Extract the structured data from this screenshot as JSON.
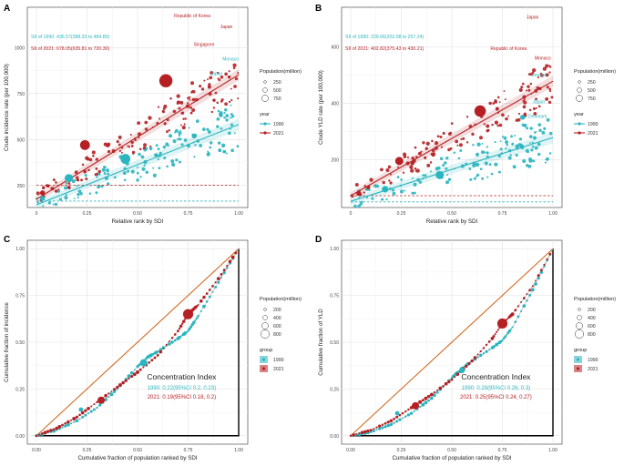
{
  "colors": {
    "y1990": "#2bb5bf",
    "y2021": "#b52024",
    "equality": "#d2691e",
    "lorenz_axis": "#000000",
    "curve_line": "#b0b0b0"
  },
  "chart_data": [
    {
      "id": "A",
      "type": "scatter",
      "panel_label": "A",
      "xlabel": "Relative rank by SDI",
      "ylabel": "Crude incidence rate (per 100,000)",
      "xlim": [
        0,
        1
      ],
      "ylim": [
        130,
        1220
      ],
      "xticks": [
        "0",
        "0.25",
        "0.50",
        "0.75",
        "1.00"
      ],
      "yticks": [
        "250",
        "500",
        "750",
        "1000"
      ],
      "annotations": [
        {
          "text": "SII of 1990: 436.57(388.33 to 484.80)",
          "series": "1990"
        },
        {
          "text": "SII of 2021: 678.05(635.81 to 720.30)",
          "series": "2021"
        }
      ],
      "country_labels": [
        {
          "text": "Republic of Korea",
          "x": 0.86,
          "y": 1165,
          "series": "2021"
        },
        {
          "text": "Japan",
          "x": 0.97,
          "y": 1105,
          "series": "2021"
        },
        {
          "text": "Singapore",
          "x": 0.88,
          "y": 1010,
          "series": "2021"
        },
        {
          "text": "Monaco",
          "x": 1.0,
          "y": 930,
          "series": "1990"
        },
        {
          "text": "Japan",
          "x": 0.92,
          "y": 850,
          "series": "1990"
        }
      ],
      "regression": [
        {
          "series": "1990",
          "x": [
            0,
            1
          ],
          "y": [
            145,
            582
          ]
        },
        {
          "series": "2021",
          "x": [
            0,
            1
          ],
          "y": [
            175,
            853
          ]
        }
      ],
      "baseline": [
        {
          "series": "1990",
          "y": 165
        },
        {
          "series": "2021",
          "y": 252
        }
      ],
      "highlight_points": [
        {
          "series": "1990",
          "x": 0.03,
          "y": 180,
          "size": 3
        },
        {
          "series": "1990",
          "x": 0.16,
          "y": 290,
          "size": 5
        },
        {
          "series": "1990",
          "x": 0.44,
          "y": 395,
          "size": 6
        },
        {
          "series": "1990",
          "x": 0.78,
          "y": 520,
          "size": 3
        },
        {
          "series": "2021",
          "x": 0.24,
          "y": 470,
          "size": 6
        },
        {
          "series": "2021",
          "x": 0.64,
          "y": 820,
          "size": 8
        },
        {
          "series": "2021",
          "x": 0.03,
          "y": 210,
          "size": 3
        }
      ],
      "legend": {
        "size_title": "Population(million)",
        "size_values": [
          "250",
          "500",
          "750"
        ],
        "color_title": "year",
        "color_values": [
          "1990",
          "2021"
        ]
      }
    },
    {
      "id": "B",
      "type": "scatter",
      "panel_label": "B",
      "xlabel": "Relative rank by SDI",
      "ylabel": "Crude YLD rate (per 100,000)",
      "xlim": [
        0,
        1
      ],
      "ylim": [
        30,
        740
      ],
      "xticks": [
        "0",
        "0.25",
        "0.50",
        "0.75",
        "1.00"
      ],
      "yticks": [
        "200",
        "400",
        "600"
      ],
      "annotations": [
        {
          "text": "SII of 1990: 229.66(202.08 to 257.24)",
          "series": "1990"
        },
        {
          "text": "SII of 2021: 402.82(375.43 to 430.21)",
          "series": "2021"
        }
      ],
      "country_labels": [
        {
          "text": "Japan",
          "x": 0.93,
          "y": 700,
          "series": "2021"
        },
        {
          "text": "Republic of Korea",
          "x": 0.87,
          "y": 588,
          "series": "2021"
        },
        {
          "text": "Monaco",
          "x": 0.99,
          "y": 555,
          "series": "2021"
        },
        {
          "text": "Monaco",
          "x": 0.97,
          "y": 495,
          "series": "1990"
        },
        {
          "text": "Japan",
          "x": 0.96,
          "y": 400,
          "series": "1990"
        },
        {
          "text": "Denmark",
          "x": 0.97,
          "y": 348,
          "series": "1990"
        }
      ],
      "regression": [
        {
          "series": "1990",
          "x": [
            0,
            1
          ],
          "y": [
            52,
            278
          ]
        },
        {
          "series": "2021",
          "x": [
            0,
            1
          ],
          "y": [
            72,
            478
          ]
        }
      ],
      "baseline": [
        {
          "series": "1990",
          "y": 50
        },
        {
          "series": "2021",
          "y": 72
        }
      ],
      "highlight_points": [
        {
          "series": "1990",
          "x": 0.17,
          "y": 95,
          "size": 4
        },
        {
          "series": "1990",
          "x": 0.44,
          "y": 145,
          "size": 5
        },
        {
          "series": "1990",
          "x": 0.85,
          "y": 350,
          "size": 3
        },
        {
          "series": "2021",
          "x": 0.24,
          "y": 195,
          "size": 5
        },
        {
          "series": "2021",
          "x": 0.64,
          "y": 372,
          "size": 7
        },
        {
          "series": "2021",
          "x": 0.04,
          "y": 80,
          "size": 3
        }
      ],
      "legend": {
        "size_title": "Population(million)",
        "size_values": [
          "250",
          "500",
          "750"
        ],
        "color_title": "year",
        "color_values": [
          "1990",
          "2021"
        ]
      }
    },
    {
      "id": "C",
      "type": "line",
      "panel_label": "C",
      "xlabel": "Cumulative fraction of population ranked by SDI",
      "ylabel": "Cumulative fraction of incidence",
      "xlim": [
        0,
        1
      ],
      "ylim": [
        0,
        1
      ],
      "xticks": [
        "0.00",
        "0.25",
        "0.50",
        "0.75",
        "1.00"
      ],
      "yticks": [
        "0.00",
        "0.25",
        "0.50",
        "0.75",
        "1.00"
      ],
      "concentration_title": "Concentration Index",
      "concentration_1990": "1990: 0.22(95%CI 0.2, 0.23)",
      "concentration_2021": "2021: 0.19(95%CI 0.18, 0.2)",
      "series": [
        {
          "name": "1990",
          "x": [
            0,
            0.1,
            0.2,
            0.3,
            0.4,
            0.5,
            0.55,
            0.6,
            0.7,
            0.75,
            0.8,
            0.9,
            1
          ],
          "y": [
            0,
            0.03,
            0.08,
            0.15,
            0.25,
            0.37,
            0.42,
            0.45,
            0.52,
            0.56,
            0.64,
            0.82,
            1
          ]
        },
        {
          "name": "2021",
          "x": [
            0,
            0.1,
            0.2,
            0.3,
            0.4,
            0.5,
            0.6,
            0.7,
            0.75,
            0.8,
            0.9,
            1
          ],
          "y": [
            0,
            0.04,
            0.1,
            0.18,
            0.26,
            0.34,
            0.43,
            0.56,
            0.65,
            0.7,
            0.84,
            1
          ]
        }
      ],
      "highlight_points": [
        {
          "series": "1990",
          "x": 0.22,
          "y": 0.14,
          "size": 3
        },
        {
          "series": "1990",
          "x": 0.53,
          "y": 0.39,
          "size": 5
        },
        {
          "series": "2021",
          "x": 0.32,
          "y": 0.19,
          "size": 5
        },
        {
          "series": "2021",
          "x": 0.75,
          "y": 0.65,
          "size": 7
        }
      ],
      "legend": {
        "size_title": "Population(million)",
        "size_values": [
          "200",
          "400",
          "600",
          "800"
        ],
        "color_title": "group",
        "color_values": [
          "1990",
          "2021"
        ]
      }
    },
    {
      "id": "D",
      "type": "line",
      "panel_label": "D",
      "xlabel": "Cumulative fraction of population ranked by SDI",
      "ylabel": "Cumulative fraction of YLD",
      "xlim": [
        0,
        1
      ],
      "ylim": [
        0,
        1
      ],
      "xticks": [
        "0.00",
        "0.25",
        "0.50",
        "0.75",
        "1.00"
      ],
      "yticks": [
        "0.00",
        "0.25",
        "0.50",
        "0.75",
        "1.00"
      ],
      "concentration_title": "Concentration Index",
      "concentration_1990": "1990: 0.28(95%CI 0.26, 0.3)",
      "concentration_2021": "2021: 0.25(95%CI 0.24, 0.27)",
      "series": [
        {
          "name": "1990",
          "x": [
            0,
            0.1,
            0.2,
            0.3,
            0.4,
            0.5,
            0.55,
            0.6,
            0.7,
            0.75,
            0.8,
            0.9,
            1
          ],
          "y": [
            0,
            0.02,
            0.06,
            0.12,
            0.2,
            0.31,
            0.36,
            0.4,
            0.47,
            0.51,
            0.58,
            0.78,
            1
          ]
        },
        {
          "name": "2021",
          "x": [
            0,
            0.1,
            0.2,
            0.3,
            0.4,
            0.5,
            0.6,
            0.7,
            0.75,
            0.8,
            0.9,
            1
          ],
          "y": [
            0,
            0.03,
            0.08,
            0.15,
            0.22,
            0.3,
            0.4,
            0.52,
            0.6,
            0.65,
            0.8,
            1
          ]
        }
      ],
      "highlight_points": [
        {
          "series": "1990",
          "x": 0.23,
          "y": 0.12,
          "size": 3
        },
        {
          "series": "1990",
          "x": 0.55,
          "y": 0.35,
          "size": 4
        },
        {
          "series": "2021",
          "x": 0.32,
          "y": 0.16,
          "size": 5
        },
        {
          "series": "2021",
          "x": 0.75,
          "y": 0.6,
          "size": 7
        }
      ],
      "legend": {
        "size_title": "Population(million)",
        "size_values": [
          "200",
          "400",
          "600",
          "800"
        ],
        "color_title": "group",
        "color_values": [
          "1990",
          "2021"
        ]
      }
    }
  ]
}
